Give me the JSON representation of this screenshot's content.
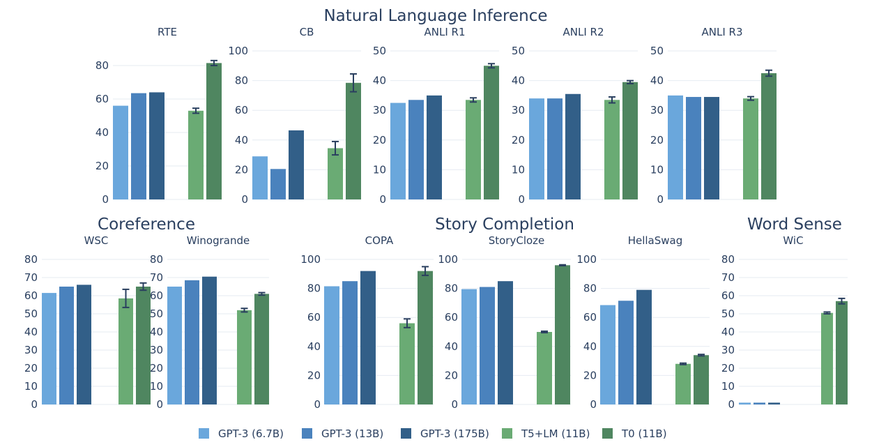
{
  "group_titles": {
    "nli": "Natural Language Inference",
    "coref": "Coreference",
    "story": "Story Completion",
    "wsd": "Word Sense"
  },
  "legend": [
    {
      "name": "GPT-3 (6.7B)",
      "color": "#6aa7dc"
    },
    {
      "name": "GPT-3 (13B)",
      "color": "#4a82bd"
    },
    {
      "name": "GPT-3 (175B)",
      "color": "#325f88"
    },
    {
      "name": "T5+LM (11B)",
      "color": "#6aab74"
    },
    {
      "name": "T0 (11B)",
      "color": "#4f8660"
    }
  ],
  "chart_data": [
    {
      "type": "bar",
      "title": "RTE",
      "ylim": [
        0,
        85
      ],
      "ticks": [
        0,
        20,
        40,
        60,
        80
      ],
      "categories": [
        "GPT-3 (6.7B)",
        "GPT-3 (13B)",
        "GPT-3 (175B)",
        "T5+LM (11B)",
        "T0 (11B)"
      ],
      "values": [
        56,
        63.5,
        64,
        53,
        81.5
      ],
      "errors": [
        null,
        null,
        null,
        1.5,
        1.5
      ]
    },
    {
      "type": "bar",
      "title": "CB",
      "ylim": [
        0,
        100
      ],
      "ticks": [
        0,
        20,
        40,
        60,
        80,
        100
      ],
      "categories": [
        "GPT-3 (6.7B)",
        "GPT-3 (13B)",
        "GPT-3 (175B)",
        "T5+LM (11B)",
        "T0 (11B)"
      ],
      "values": [
        29,
        20.5,
        46.5,
        34.5,
        78.5
      ],
      "errors": [
        null,
        null,
        null,
        4.5,
        6
      ]
    },
    {
      "type": "bar",
      "title": "ANLI R1",
      "ylim": [
        0,
        50
      ],
      "ticks": [
        0,
        10,
        20,
        30,
        40,
        50
      ],
      "categories": [
        "GPT-3 (6.7B)",
        "GPT-3 (13B)",
        "GPT-3 (175B)",
        "T5+LM (11B)",
        "T0 (11B)"
      ],
      "values": [
        32.5,
        33.5,
        35,
        33.5,
        45
      ],
      "errors": [
        null,
        null,
        null,
        0.7,
        0.7
      ]
    },
    {
      "type": "bar",
      "title": "ANLI R2",
      "ylim": [
        0,
        50
      ],
      "ticks": [
        0,
        10,
        20,
        30,
        40,
        50
      ],
      "categories": [
        "GPT-3 (6.7B)",
        "GPT-3 (13B)",
        "GPT-3 (175B)",
        "T5+LM (11B)",
        "T0 (11B)"
      ],
      "values": [
        34,
        34,
        35.5,
        33.5,
        39.5
      ],
      "errors": [
        null,
        null,
        null,
        1,
        0.5
      ]
    },
    {
      "type": "bar",
      "title": "ANLI R3",
      "ylim": [
        0,
        50
      ],
      "ticks": [
        0,
        10,
        20,
        30,
        40,
        50
      ],
      "categories": [
        "GPT-3 (6.7B)",
        "GPT-3 (13B)",
        "GPT-3 (175B)",
        "T5+LM (11B)",
        "T0 (11B)"
      ],
      "values": [
        35,
        34.5,
        34.5,
        34,
        42.5
      ],
      "errors": [
        null,
        null,
        null,
        0.6,
        1
      ]
    },
    {
      "type": "bar",
      "title": "WSC",
      "ylim": [
        0,
        80
      ],
      "ticks": [
        0,
        10,
        20,
        30,
        40,
        50,
        60,
        70,
        80
      ],
      "categories": [
        "GPT-3 (6.7B)",
        "GPT-3 (13B)",
        "GPT-3 (175B)",
        "T5+LM (11B)",
        "T0 (11B)"
      ],
      "values": [
        61.5,
        65,
        66,
        58.5,
        65
      ],
      "errors": [
        null,
        null,
        null,
        5,
        2
      ]
    },
    {
      "type": "bar",
      "title": "Winogrande",
      "ylim": [
        0,
        80
      ],
      "ticks": [
        0,
        10,
        20,
        30,
        40,
        50,
        60,
        70,
        80
      ],
      "categories": [
        "GPT-3 (6.7B)",
        "GPT-3 (13B)",
        "GPT-3 (175B)",
        "T5+LM (11B)",
        "T0 (11B)"
      ],
      "values": [
        65,
        68.5,
        70.5,
        52,
        61
      ],
      "errors": [
        null,
        null,
        null,
        1,
        0.7
      ]
    },
    {
      "type": "bar",
      "title": "COPA",
      "ylim": [
        0,
        100
      ],
      "ticks": [
        0,
        20,
        40,
        60,
        80,
        100
      ],
      "categories": [
        "GPT-3 (6.7B)",
        "GPT-3 (13B)",
        "GPT-3 (175B)",
        "T5+LM (11B)",
        "T0 (11B)"
      ],
      "values": [
        81.5,
        85,
        92,
        56,
        92
      ],
      "errors": [
        null,
        null,
        null,
        3,
        3
      ]
    },
    {
      "type": "bar",
      "title": "StoryCloze",
      "ylim": [
        0,
        100
      ],
      "ticks": [
        0,
        20,
        40,
        60,
        80,
        100
      ],
      "categories": [
        "GPT-3 (6.7B)",
        "GPT-3 (13B)",
        "GPT-3 (175B)",
        "T5+LM (11B)",
        "T0 (11B)"
      ],
      "values": [
        79.5,
        81,
        85,
        50,
        96
      ],
      "errors": [
        null,
        null,
        null,
        0.5,
        0.3
      ]
    },
    {
      "type": "bar",
      "title": "HellaSwag",
      "ylim": [
        0,
        100
      ],
      "ticks": [
        0,
        20,
        40,
        60,
        80,
        100
      ],
      "categories": [
        "GPT-3 (6.7B)",
        "GPT-3 (13B)",
        "GPT-3 (175B)",
        "T5+LM (11B)",
        "T0 (11B)"
      ],
      "values": [
        68.5,
        71.5,
        79,
        28,
        34
      ],
      "errors": [
        null,
        null,
        null,
        0.5,
        0.5
      ]
    },
    {
      "type": "bar",
      "title": "WiC",
      "ylim": [
        0,
        80
      ],
      "ticks": [
        0,
        10,
        20,
        30,
        40,
        50,
        60,
        70,
        80
      ],
      "categories": [
        "GPT-3 (6.7B)",
        "GPT-3 (13B)",
        "GPT-3 (175B)",
        "T5+LM (11B)",
        "T0 (11B)"
      ],
      "values": [
        1,
        1,
        1,
        50.5,
        57
      ],
      "errors": [
        null,
        null,
        null,
        0.5,
        1.5
      ]
    }
  ]
}
